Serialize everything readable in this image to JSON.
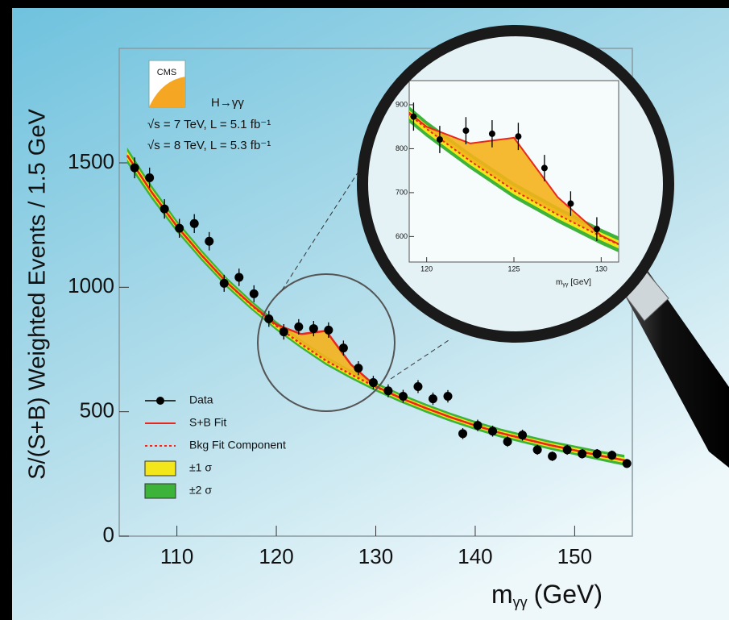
{
  "chart_data": {
    "type": "scatter",
    "ylabel": "S/(S+B) Weighted Events / 1.5 GeV",
    "xlabel": {
      "main": "m",
      "sub": "γγ",
      "unit": "(GeV)"
    },
    "xlim": [
      104.2,
      155.8
    ],
    "ylim": [
      0,
      1960
    ],
    "xticks": [
      110,
      120,
      130,
      140,
      150
    ],
    "yticks": [
      0,
      500,
      1000,
      1500
    ],
    "x": [
      105.75,
      107.25,
      108.75,
      110.25,
      111.75,
      113.25,
      114.75,
      116.25,
      117.75,
      119.25,
      120.75,
      122.25,
      123.75,
      125.25,
      126.75,
      128.25,
      129.75,
      131.25,
      132.75,
      134.25,
      135.75,
      137.25,
      138.75,
      140.25,
      141.75,
      143.25,
      144.75,
      146.25,
      147.75,
      149.25,
      150.75,
      152.25,
      153.75,
      155.25
    ],
    "series": [
      {
        "name": "Data",
        "color": "#000000",
        "values": [
          1480,
          1440,
          1315,
          1237,
          1256,
          1185,
          1016,
          1040,
          974,
          873,
          821,
          841,
          834,
          828,
          756,
          675,
          617,
          584,
          562,
          601,
          552,
          562,
          412,
          445,
          422,
          380,
          406,
          347,
          321,
          347,
          331,
          331,
          325,
          292
        ],
        "errors": [
          42,
          41,
          39,
          38,
          38,
          37,
          34,
          35,
          34,
          32,
          31,
          31,
          31,
          31,
          30,
          28,
          27,
          26,
          26,
          26,
          25,
          25,
          22,
          23,
          22,
          21,
          22,
          20,
          19,
          20,
          19,
          19,
          19,
          18
        ]
      }
    ],
    "fit_x": [
      105,
      107.5,
      110,
      112.5,
      115,
      117.5,
      120,
      122.5,
      125,
      127.5,
      130,
      132.5,
      135,
      137.5,
      140,
      142.5,
      145,
      147.5,
      150,
      152.5,
      155
    ],
    "fits": [
      {
        "name": "S+B Fit",
        "color": "#e8281e",
        "style": "solid",
        "values": [
          1530,
          1380,
          1245,
          1128,
          1020,
          930,
          850,
          812,
          825,
          690,
          602,
          555,
          515,
          478,
          445,
          415,
          390,
          366,
          345,
          324,
          305
        ]
      },
      {
        "name": "Bkg Fit Component",
        "color": "#e8281e",
        "style": "dotted",
        "values": [
          1530,
          1380,
          1245,
          1128,
          1020,
          928,
          845,
          772,
          705,
          650,
          600,
          555,
          515,
          478,
          445,
          415,
          390,
          366,
          345,
          324,
          305
        ]
      }
    ],
    "bands": [
      {
        "name": "±1 σ",
        "color": "#f3e61a",
        "halfwidth": [
          16,
          14,
          12,
          11,
          10,
          10,
          9,
          9,
          9,
          9,
          9,
          9,
          9,
          9,
          9,
          9,
          9,
          9,
          10,
          10,
          11
        ]
      },
      {
        "name": "±2 σ",
        "color": "#3db33a",
        "halfwidth": [
          32,
          28,
          24,
          22,
          20,
          19,
          18,
          18,
          18,
          18,
          18,
          18,
          18,
          18,
          18,
          18,
          18,
          18,
          19,
          20,
          22
        ]
      }
    ],
    "annotations": {
      "experiment": "CMS",
      "channel": "H→γγ",
      "lines": [
        "√s = 7 TeV, L = 5.1 fb⁻¹",
        "√s = 8 TeV, L = 5.3 fb⁻¹"
      ]
    },
    "inset": {
      "xlim": [
        119,
        131
      ],
      "ylim": [
        542,
        955
      ],
      "xticks": [
        120,
        125,
        130
      ],
      "yticks": [
        600,
        700,
        800,
        900
      ],
      "xlabel": {
        "main": "m",
        "sub": "γγ",
        "unit": "[GeV]"
      }
    }
  }
}
